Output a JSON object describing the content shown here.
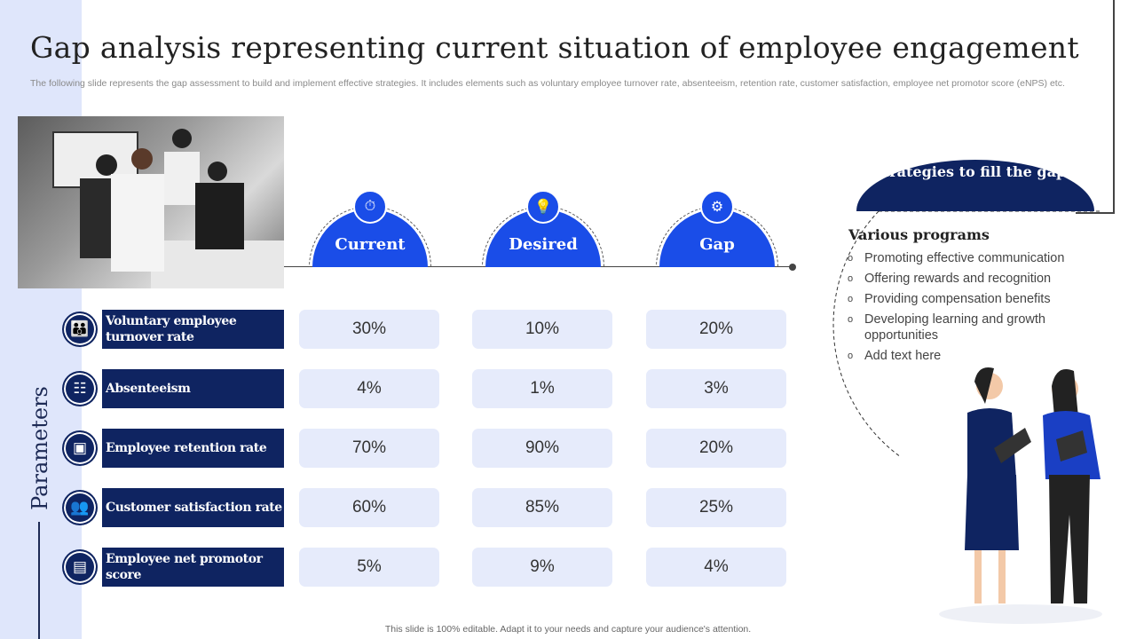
{
  "title": "Gap analysis representing current situation of employee engagement",
  "subtitle": "The following slide represents the gap assessment to build and implement effective strategies. It includes elements such as voluntary employee turnover rate, absenteeism, retention rate, customer satisfaction, employee net promotor score (eNPS) etc.",
  "columns": [
    {
      "label": "Current",
      "icon": "stopwatch-icon"
    },
    {
      "label": "Desired",
      "icon": "lightbulb-icon"
    },
    {
      "label": "Gap",
      "icon": "analysis-icon"
    }
  ],
  "side_label": "Parameters",
  "rows": [
    {
      "label": "Voluntary employee turnover rate",
      "icon": "people-icon",
      "values": [
        "30%",
        "10%",
        "20%"
      ]
    },
    {
      "label": "Absenteeism",
      "icon": "hierarchy-icon",
      "values": [
        "4%",
        "1%",
        "3%"
      ]
    },
    {
      "label": "Employee retention rate",
      "icon": "presentation-icon",
      "values": [
        "70%",
        "90%",
        "20%"
      ]
    },
    {
      "label": "Customer satisfaction rate",
      "icon": "group-icon",
      "values": [
        "60%",
        "85%",
        "25%"
      ]
    },
    {
      "label": "Employee net promotor score",
      "icon": "scorecard-icon",
      "values": [
        "5%",
        "9%",
        "4%"
      ]
    }
  ],
  "strategies": {
    "heading": "Strategies to fill the gap –",
    "subheading": "Various programs",
    "items": [
      "Promoting effective communication",
      "Offering rewards and recognition",
      "Providing compensation benefits",
      "Developing learning and growth opportunities",
      "Add text here"
    ]
  },
  "footer": "This slide is 100% editable. Adapt it to your needs and capture your audience's attention.",
  "colors": {
    "navy": "#0f2461",
    "blue": "#1a4de8",
    "light": "#e6ebfb"
  }
}
